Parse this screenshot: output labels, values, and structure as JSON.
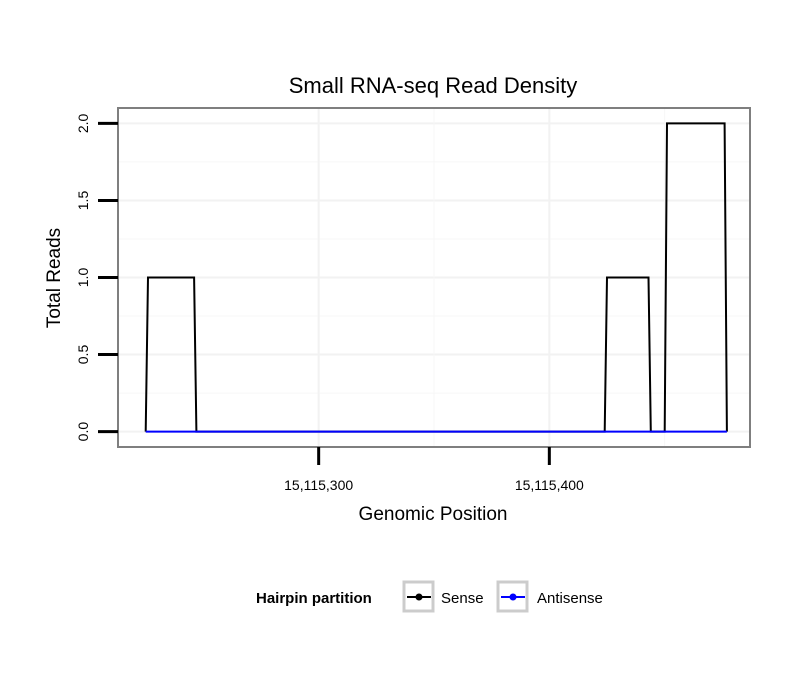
{
  "chart_data": {
    "type": "line",
    "title": "Small RNA-seq Read Density",
    "xlabel": "Genomic Position",
    "ylabel": "Total Reads",
    "xlim": [
      15115213,
      15115487
    ],
    "ylim": [
      -0.1,
      2.1
    ],
    "x_ticks": [
      {
        "value": 15115300,
        "label": "15,115,300"
      },
      {
        "value": 15115400,
        "label": "15,115,400"
      }
    ],
    "y_ticks": [
      {
        "value": 0.0,
        "label": "0.0"
      },
      {
        "value": 0.5,
        "label": "0.5"
      },
      {
        "value": 1.0,
        "label": "1.0"
      },
      {
        "value": 1.5,
        "label": "1.5"
      },
      {
        "value": 2.0,
        "label": "2.0"
      }
    ],
    "grid": true,
    "legend": {
      "title": "Hairpin partition",
      "position": "bottom"
    },
    "series": [
      {
        "name": "Sense",
        "color": "#000000",
        "x": [
          15115225,
          15115226,
          15115246,
          15115247,
          15115424,
          15115425,
          15115443,
          15115444,
          15115450,
          15115451,
          15115476,
          15115477
        ],
        "y": [
          0,
          1,
          1,
          0,
          0,
          1,
          1,
          0,
          0,
          2,
          2,
          0
        ]
      },
      {
        "name": "Antisense",
        "color": "#0000ff",
        "x": [
          15115225,
          15115247,
          15115424,
          15115477
        ],
        "y": [
          0,
          0,
          0,
          0
        ]
      }
    ]
  }
}
